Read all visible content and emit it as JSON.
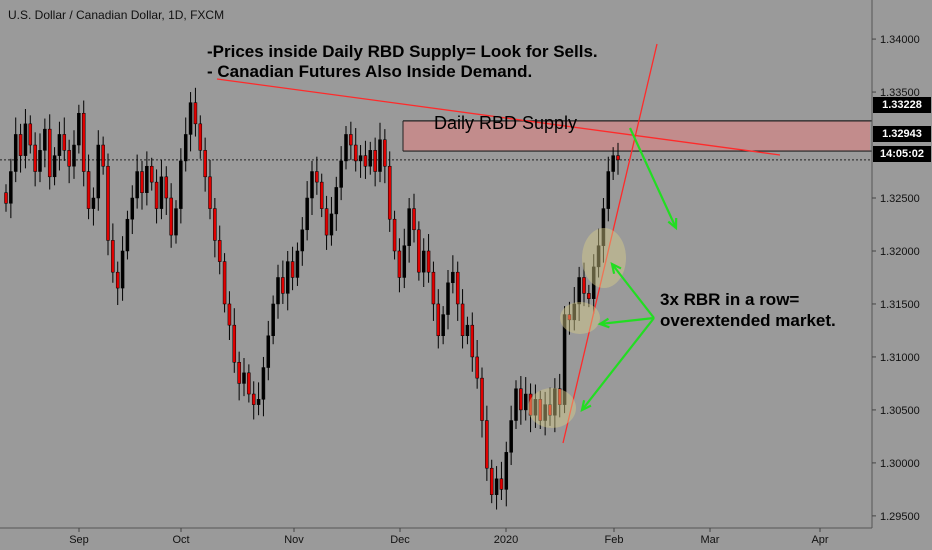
{
  "chart_title": "U.S. Dollar / Canadian Dollar, 1D, FXCM",
  "annotations": {
    "note1": "-Prices inside Daily RBD Supply= Look for Sells.",
    "note2": "- Canadian Futures Also Inside Demand.",
    "zone_label": "Daily RBD Supply",
    "rbr_line1": "3x RBR in a row=",
    "rbr_line2": "overextended market."
  },
  "price_tags": {
    "zone_top": "1.33228",
    "zone_bottom": "1.32943",
    "countdown": "14:05:02"
  },
  "colors": {
    "background": "#9a9a9a",
    "bull": "#000000",
    "bear": "#e00000",
    "zone_fill": "#c98a8a",
    "zone_border": "#222222",
    "trendline": "#ff2a2a",
    "arrow": "#22dd22",
    "highlight": "#d9cf8a"
  },
  "chart_data": {
    "type": "candlestick",
    "title": "U.S. Dollar / Canadian Dollar, 1D, FXCM",
    "x_ticks": [
      "Sep",
      "Oct",
      "Nov",
      "Dec",
      "2020",
      "Feb",
      "Mar",
      "Apr"
    ],
    "y_ticks": [
      "1.34000",
      "1.33500",
      "1.33228",
      "1.32943",
      "1.32500",
      "1.32000",
      "1.31500",
      "1.31000",
      "1.30500",
      "1.30000",
      "1.29500"
    ],
    "ylim": [
      1.2948,
      1.3418
    ],
    "supply_zone": [
      1.32943,
      1.33228
    ],
    "current_price": 1.3286,
    "grid": false,
    "approx_closes": [
      1.3245,
      1.3275,
      1.331,
      1.329,
      1.332,
      1.33,
      1.3275,
      1.3295,
      1.3315,
      1.327,
      1.329,
      1.331,
      1.3295,
      1.328,
      1.33,
      1.333,
      1.3275,
      1.324,
      1.325,
      1.33,
      1.328,
      1.321,
      1.318,
      1.3165,
      1.32,
      1.323,
      1.325,
      1.3275,
      1.3255,
      1.328,
      1.3265,
      1.324,
      1.327,
      1.325,
      1.3215,
      1.324,
      1.3285,
      1.331,
      1.334,
      1.332,
      1.3295,
      1.327,
      1.324,
      1.321,
      1.319,
      1.315,
      1.313,
      1.3095,
      1.3075,
      1.3085,
      1.3065,
      1.3055,
      1.306,
      1.309,
      1.312,
      1.315,
      1.3175,
      1.316,
      1.319,
      1.3175,
      1.32,
      1.322,
      1.325,
      1.3275,
      1.3265,
      1.324,
      1.3215,
      1.3235,
      1.326,
      1.3285,
      1.331,
      1.33,
      1.3285,
      1.329,
      1.328,
      1.3295,
      1.3275,
      1.3305,
      1.328,
      1.323,
      1.32,
      1.3175,
      1.3205,
      1.324,
      1.322,
      1.318,
      1.32,
      1.318,
      1.315,
      1.312,
      1.314,
      1.317,
      1.318,
      1.315,
      1.312,
      1.313,
      1.31,
      1.308,
      1.304,
      1.2995,
      1.297,
      1.2985,
      1.2975,
      1.301,
      1.304,
      1.307,
      1.305,
      1.3065,
      1.3045,
      1.306,
      1.304,
      1.3055,
      1.3045,
      1.307,
      1.3055,
      1.314,
      1.3135,
      1.315,
      1.3175,
      1.316,
      1.3155,
      1.3185,
      1.3205,
      1.324,
      1.3275,
      1.329,
      1.3286
    ]
  }
}
